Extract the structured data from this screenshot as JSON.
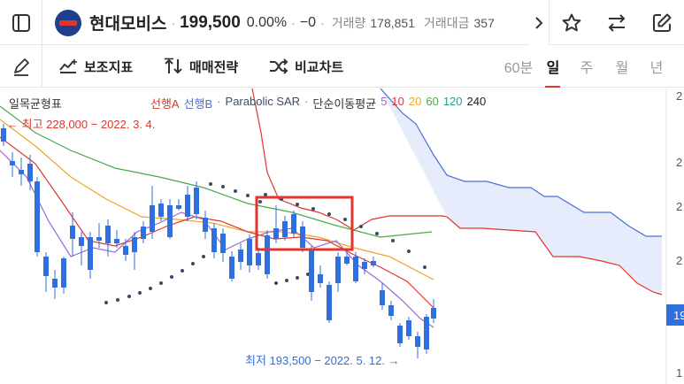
{
  "header": {
    "name": "현대모비스",
    "price": "199,500",
    "change_pct": "0.00%",
    "change_abs": "−0",
    "volume_label": "거래량",
    "volume": "178,851",
    "value_label": "거래대금",
    "value": "357"
  },
  "toolbar": {
    "tools": [
      "보조지표",
      "매매전략",
      "비교차트"
    ],
    "timeframes": [
      "60분",
      "일",
      "주",
      "월",
      "년"
    ],
    "active_timeframe": "일"
  },
  "legend": {
    "ichimoku": "일목균형표",
    "span_a": "선행A",
    "span_b": "선행B",
    "sar": "Parabolic SAR",
    "ma_label": "단순이동평균",
    "ma_periods": [
      "5",
      "10",
      "20",
      "60",
      "120",
      "240"
    ]
  },
  "annotations": {
    "high": "← 최고 228,000 − 2022. 3. 4.",
    "low": "최저 193,500 − 2022. 5. 12. →"
  },
  "axis": {
    "price_tag": "19"
  },
  "colors": {
    "up": "#e0362d",
    "down": "#2f6fde",
    "ma5": "#9a6bd1",
    "ma10": "#e0362d",
    "ma20": "#f0a52a",
    "ma60": "#4aa84a",
    "ma120": "#2b9a8f",
    "ma240": "#222222",
    "span_a": "#e0362d",
    "span_b": "#4a6fd8",
    "sar": "#3d4a66",
    "highlight": "#e0362d"
  },
  "chart_data": {
    "type": "candlestick",
    "timeframe": "일",
    "y_marks": {
      "high": 228000,
      "low": 193500,
      "current": 199500
    }
  }
}
